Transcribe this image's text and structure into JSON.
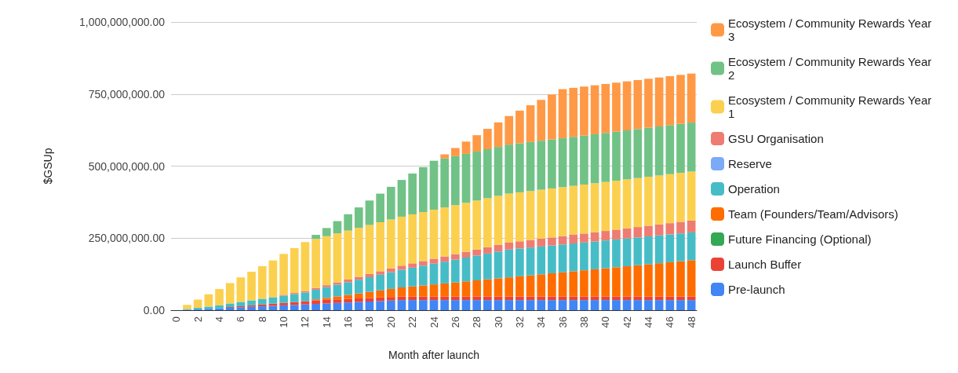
{
  "chart_data": {
    "type": "bar",
    "stacked": true,
    "xlabel": "Month after launch",
    "ylabel": "$GSUp",
    "categories": [
      "0",
      null,
      "2",
      null,
      "4",
      null,
      "6",
      null,
      "8",
      null,
      "10",
      null,
      "12",
      null,
      "14",
      null,
      "16",
      null,
      "18",
      null,
      "20",
      null,
      "22",
      null,
      "24",
      null,
      "26",
      null,
      "28",
      null,
      "30",
      null,
      "32",
      null,
      "34",
      null,
      "36",
      null,
      "38",
      null,
      "40",
      null,
      "42",
      null,
      "44",
      null,
      "46",
      null,
      "48"
    ],
    "ylim": [
      0,
      1000000000.0
    ],
    "yticks": [
      {
        "value": 0,
        "label": "0.00"
      },
      {
        "value": 250000000.0,
        "label": "250,000,000.00"
      },
      {
        "value": 500000000.0,
        "label": "500,000,000.00"
      },
      {
        "value": 750000000.0,
        "label": "750,000,000.00"
      },
      {
        "value": 1000000000.0,
        "label": "1,000,000,000.00"
      }
    ],
    "grid": "y",
    "legend": "right",
    "series": [
      {
        "name": "Pre-launch",
        "color": "#4285f4",
        "values": [
          0,
          1700000.0,
          3300000.0,
          5000000.0,
          6700000.0,
          8300000.0,
          10000000.0,
          11700000.0,
          13300000.0,
          15000000.0,
          16700000.0,
          18300000.0,
          20000000.0,
          21700000.0,
          23300000.0,
          25000000.0,
          26700000.0,
          28300000.0,
          30000000.0,
          31700000.0,
          33300000.0,
          35000000.0,
          35000000.0,
          35000000.0,
          35000000.0,
          35000000.0,
          35000000.0,
          35000000.0,
          35000000.0,
          35000000.0,
          35000000.0,
          35000000.0,
          35000000.0,
          35000000.0,
          35000000.0,
          35000000.0,
          35000000.0,
          35000000.0,
          35000000.0,
          35000000.0,
          35000000.0,
          35000000.0,
          35000000.0,
          35000000.0,
          35000000.0,
          35000000.0,
          35000000.0,
          35000000.0,
          35000000.0
        ]
      },
      {
        "name": "Launch Buffer",
        "color": "#ea4335",
        "values": [
          0,
          0,
          0,
          0,
          null,
          2500000.0,
          3750000.0,
          5000000.0,
          6250000.0,
          7500000.0,
          8750000.0,
          10000000.0,
          11250000.0,
          12500000.0,
          12500000.0,
          12500000.0,
          12500000.0,
          12500000.0,
          12500000.0,
          12500000.0,
          12500000.0,
          12500000.0,
          12500000.0,
          12500000.0,
          12500000.0,
          12500000.0,
          12500000.0,
          12500000.0,
          12500000.0,
          12500000.0,
          12500000.0,
          12500000.0,
          12500000.0,
          12500000.0,
          12500000.0,
          12500000.0,
          12500000.0,
          12500000.0,
          12500000.0,
          12500000.0,
          12500000.0,
          12500000.0,
          12500000.0,
          12500000.0,
          12500000.0,
          12500000.0,
          12500000.0,
          12500000.0,
          12500000.0
        ]
      },
      {
        "name": "Future Financing (Optional)",
        "color": "#34a853",
        "values": [
          0,
          0,
          0,
          0,
          0,
          0,
          0,
          0,
          0,
          0,
          0,
          0,
          0,
          0,
          0,
          0,
          0,
          0,
          0,
          0,
          0,
          0,
          0,
          0,
          0,
          0,
          0,
          0,
          0,
          0,
          0,
          0,
          0,
          0,
          0,
          0,
          0,
          0,
          0,
          0,
          0,
          0,
          0,
          0,
          0,
          0,
          0,
          0,
          0
        ]
      },
      {
        "name": "Team (Founders/Team/Advisors)",
        "color": "#ff6d01",
        "values": [
          0,
          0,
          0,
          0,
          0,
          0,
          0,
          0,
          0,
          0,
          0,
          0,
          0,
          3500000.0,
          7000000.0,
          10500000.0,
          14000000.0,
          17500000.0,
          21000000.0,
          24500000.0,
          28000000.0,
          31500000.0,
          35000000.0,
          38500000.0,
          42000000.0,
          45500000.0,
          49000000.0,
          52500000.0,
          56000000.0,
          59500000.0,
          63000000.0,
          66500000.0,
          70000000.0,
          73500000.0,
          77000000.0,
          80500000.0,
          84000000.0,
          87500000.0,
          91000000.0,
          94500000.0,
          98000000.0,
          101500000.0,
          105000000.0,
          108500000.0,
          112000000.0,
          115500000.0,
          119000000.0,
          122500000.0,
          126000000.0
        ]
      },
      {
        "name": "Operation",
        "color": "#46bdc6",
        "values": [
          0,
          2500000.0,
          5000000.0,
          7500000.0,
          10000000.0,
          12500000.0,
          15000000.0,
          17500000.0,
          20000000.0,
          22500000.0,
          25000000.0,
          27500000.0,
          30000000.0,
          33500000.0,
          37000000.0,
          40500000.0,
          44000000.0,
          47500000.0,
          51000000.0,
          54500000.0,
          58000000.0,
          61500000.0,
          65000000.0,
          68500000.0,
          72000000.0,
          75500000.0,
          79000000.0,
          82500000.0,
          86000000.0,
          89500000.0,
          93000000.0,
          96500000.0,
          96500000.0,
          96500000.0,
          96500000.0,
          96500000.0,
          96500000.0,
          96500000.0,
          96500000.0,
          96500000.0,
          96500000.0,
          96500000.0,
          96500000.0,
          96500000.0,
          96500000.0,
          96500000.0,
          96500000.0,
          96500000.0,
          96500000.0
        ]
      },
      {
        "name": "Reserve",
        "color": "#7baaf7",
        "values": [
          0,
          0,
          0,
          0,
          0,
          0,
          0,
          0,
          0,
          0,
          0,
          0,
          0,
          0,
          0,
          0,
          0,
          0,
          0,
          0,
          0,
          0,
          0,
          0,
          0,
          0,
          0,
          0,
          0,
          0,
          0,
          0,
          0,
          0,
          0,
          0,
          0,
          0,
          0,
          0,
          0,
          0,
          0,
          0,
          0,
          0,
          0,
          0,
          0
        ]
      },
      {
        "name": "GSU Organisation",
        "color": "#ee7c72",
        "values": [
          0,
          0,
          0,
          0,
          0,
          0,
          0,
          0,
          null,
          null,
          3000000.0,
          4000000.0,
          5000000.0,
          6000000.0,
          7000000.0,
          8000000.0,
          9000000.0,
          10000000.0,
          11000000.0,
          12000000.0,
          13000000.0,
          14000000.0,
          15000000.0,
          16000000.0,
          17000000.0,
          18000000.0,
          19000000.0,
          20000000.0,
          21000000.0,
          22000000.0,
          23000000.0,
          24000000.0,
          25000000.0,
          26000000.0,
          27000000.0,
          28000000.0,
          29000000.0,
          30000000.0,
          31000000.0,
          32000000.0,
          33000000.0,
          34000000.0,
          35000000.0,
          36000000.0,
          37000000.0,
          38000000.0,
          39000000.0,
          40000000.0,
          41000000.0
        ]
      },
      {
        "name": "Ecosystem / Community Rewards Year 1",
        "color": "#fcd04f",
        "values": [
          0,
          14200000.0,
          28300000.0,
          42500000.0,
          56700000.0,
          70800000.0,
          85000000.0,
          99200000.0,
          113300000.0,
          127500000.0,
          141700000.0,
          155800000.0,
          170000000.0,
          170000000.0,
          170000000.0,
          170000000.0,
          170000000.0,
          170000000.0,
          170000000.0,
          170000000.0,
          170000000.0,
          170000000.0,
          170000000.0,
          170000000.0,
          170000000.0,
          170000000.0,
          170000000.0,
          170000000.0,
          170000000.0,
          170000000.0,
          170000000.0,
          170000000.0,
          170000000.0,
          170000000.0,
          170000000.0,
          170000000.0,
          170000000.0,
          170000000.0,
          170000000.0,
          170000000.0,
          170000000.0,
          170000000.0,
          170000000.0,
          170000000.0,
          170000000.0,
          170000000.0,
          170000000.0,
          170000000.0,
          170000000.0
        ]
      },
      {
        "name": "Ecosystem / Community Rewards Year 2",
        "color": "#71c287",
        "values": [
          0,
          0,
          0,
          0,
          0,
          0,
          0,
          0,
          0,
          0,
          0,
          0,
          0,
          14200000.0,
          28300000.0,
          42500000.0,
          56700000.0,
          70800000.0,
          85000000.0,
          99200000.0,
          113300000.0,
          127500000.0,
          141700000.0,
          155800000.0,
          170000000.0,
          170000000.0,
          170000000.0,
          170000000.0,
          170000000.0,
          170000000.0,
          170000000.0,
          170000000.0,
          170000000.0,
          170000000.0,
          170000000.0,
          170000000.0,
          170000000.0,
          170000000.0,
          170000000.0,
          170000000.0,
          170000000.0,
          170000000.0,
          170000000.0,
          170000000.0,
          170000000.0,
          170000000.0,
          170000000.0,
          170000000.0,
          170000000.0
        ]
      },
      {
        "name": "Ecosystem / Community Rewards Year 3",
        "color": "#ff9946",
        "values": [
          0,
          0,
          0,
          0,
          0,
          0,
          0,
          0,
          0,
          0,
          0,
          0,
          0,
          0,
          0,
          0,
          0,
          0,
          0,
          0,
          0,
          0,
          0,
          0,
          0,
          14200000.0,
          28300000.0,
          42500000.0,
          56700000.0,
          70800000.0,
          85000000.0,
          99200000.0,
          113300000.0,
          127500000.0,
          141700000.0,
          155800000.0,
          170000000.0,
          170000000.0,
          170000000.0,
          170000000.0,
          170000000.0,
          170000000.0,
          170000000.0,
          170000000.0,
          170000000.0,
          170000000.0,
          170000000.0,
          170000000.0,
          170000000.0
        ]
      }
    ]
  }
}
